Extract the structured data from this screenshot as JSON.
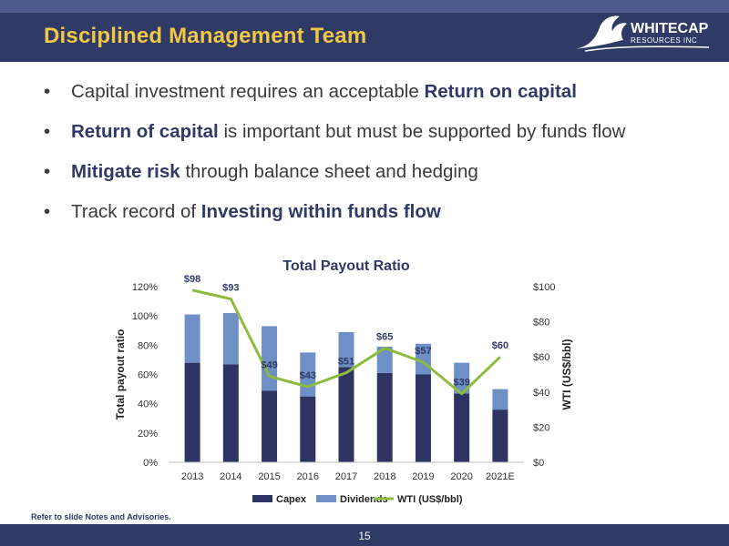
{
  "slide": {
    "title": "Disciplined Management Team",
    "logo": {
      "name": "WHITECAP",
      "subtitle": "RESOURCES INC"
    },
    "bullets": [
      [
        {
          "t": "Capital investment requires an acceptable ",
          "b": false
        },
        {
          "t": "Return on capital",
          "b": true
        }
      ],
      [
        {
          "t": "Return of capital",
          "b": true
        },
        {
          "t": " is important but must be supported by funds flow",
          "b": false
        }
      ],
      [
        {
          "t": "Mitigate risk",
          "b": true
        },
        {
          "t": " through balance sheet and hedging",
          "b": false
        }
      ],
      [
        {
          "t": "Track record of ",
          "b": false
        },
        {
          "t": "Investing within funds flow",
          "b": true
        }
      ]
    ],
    "bullet_char": "•",
    "note": "Refer to slide Notes and Advisories.",
    "page_number": "15"
  },
  "colors": {
    "navy": "#2f3a66",
    "gold": "#f2c744",
    "capex": "#2e3363",
    "dividends": "#6f8fc7",
    "wti": "#8dbb3e"
  },
  "chart_data": {
    "type": "bar",
    "title": "Total Payout Ratio",
    "categories": [
      "2013",
      "2014",
      "2015",
      "2016",
      "2017",
      "2018",
      "2019",
      "2020",
      "2021E"
    ],
    "series": [
      {
        "name": "Capex",
        "kind": "stacked-bar",
        "axis": "left",
        "values": [
          68,
          67,
          49,
          45,
          65,
          61,
          60,
          47,
          36
        ]
      },
      {
        "name": "Dividends",
        "kind": "stacked-bar",
        "axis": "left",
        "values": [
          33,
          35,
          44,
          30,
          24,
          18,
          21,
          21,
          14
        ]
      },
      {
        "name": "WTI (US$/bbl)",
        "kind": "line",
        "axis": "right",
        "values": [
          98,
          93,
          49,
          43,
          51,
          65,
          57,
          39,
          60
        ],
        "labels": [
          "$98",
          "$93",
          "$49",
          "$43",
          "$51",
          "$65",
          "$57",
          "$39",
          "$60"
        ]
      }
    ],
    "y_left": {
      "label": "Total payout ratio",
      "ticks": [
        "0%",
        "20%",
        "40%",
        "60%",
        "80%",
        "100%",
        "120%"
      ],
      "range": [
        0,
        120
      ]
    },
    "y_right": {
      "label": "WTI (US$/bbl)",
      "ticks": [
        "$0",
        "$20",
        "$40",
        "$60",
        "$80",
        "$100"
      ],
      "range": [
        0,
        100
      ]
    },
    "legend": [
      "Capex",
      "Dividends",
      "WTI (US$/bbl)"
    ],
    "legend_position": "bottom",
    "grid": false
  }
}
